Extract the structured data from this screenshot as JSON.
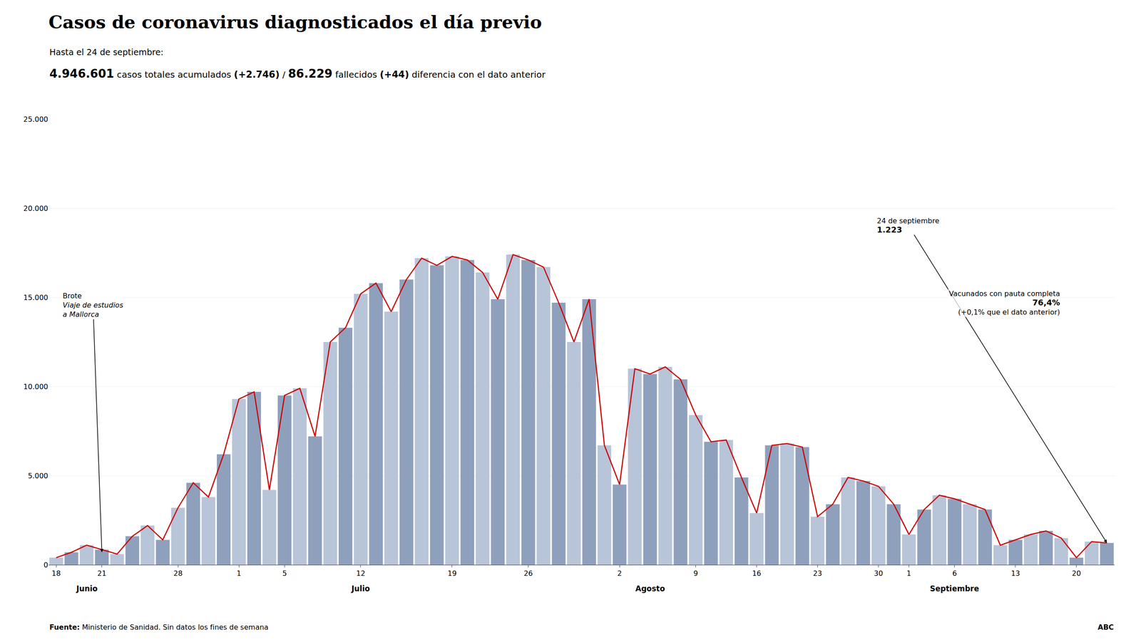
{
  "chart_data": {
    "type": "bar",
    "title": "Casos de coronavirus diagnosticados el día previo",
    "subtitle": "Hasta el 24 de septiembre:",
    "subtitle_parts": [
      "4.946.601",
      "casos totales acumulados",
      "(+2.746)",
      "/",
      "86.229",
      "fallecidos",
      "(+44)",
      "diferencia con el dato anterior"
    ],
    "source": "Fuente:",
    "source_text": "Ministerio de Sanidad. Sin datos los fines de semana",
    "source_right": "ABC",
    "categories": [
      "18",
      null,
      null,
      "21",
      null,
      null,
      null,
      null,
      "28",
      null,
      null,
      null,
      "1",
      null,
      null,
      "5",
      null,
      null,
      null,
      null,
      "12",
      null,
      null,
      null,
      null,
      null,
      "19",
      null,
      null,
      null,
      null,
      "26",
      null,
      null,
      null,
      null,
      null,
      "2",
      null,
      null,
      null,
      null,
      "9",
      null,
      null,
      null,
      "16",
      null,
      null,
      null,
      "23",
      null,
      null,
      null,
      "30",
      null,
      "1",
      null,
      null,
      "6",
      null,
      null,
      null,
      "13",
      null,
      null,
      null,
      "20",
      null,
      null
    ],
    "series": [
      {
        "type": "bar",
        "colors": [
          "#b8c4d8",
          "#8fa0bc",
          "#b8c4d8",
          "#8fa0bc",
          "#b8c4d8",
          "#8fa0bc",
          "#b8c4d8",
          "#8fa0bc",
          "#b8c4d8",
          "#8fa0bc",
          "#b8c4d8",
          "#8fa0bc",
          "#b8c4d8",
          "#8fa0bc",
          "#b8c4d8",
          "#8fa0bc",
          "#b8c4d8",
          "#8fa0bc",
          "#b8c4d8",
          "#8fa0bc",
          "#b8c4d8",
          "#8fa0bc",
          "#b8c4d8",
          "#8fa0bc",
          "#b8c4d8",
          "#8fa0bc",
          "#b8c4d8",
          "#8fa0bc",
          "#b8c4d8",
          "#8fa0bc",
          "#b8c4d8",
          "#8fa0bc",
          "#b8c4d8",
          "#8fa0bc",
          "#b8c4d8",
          "#8fa0bc",
          "#b8c4d8",
          "#8fa0bc",
          "#b8c4d8",
          "#8fa0bc",
          "#b8c4d8",
          "#8fa0bc",
          "#b8c4d8",
          "#8fa0bc",
          "#b8c4d8",
          "#8fa0bc",
          "#b8c4d8",
          "#8fa0bc",
          "#b8c4d8",
          "#8fa0bc",
          "#b8c4d8",
          "#8fa0bc",
          "#b8c4d8",
          "#8fa0bc",
          "#b8c4d8",
          "#8fa0bc",
          "#b8c4d8",
          "#8fa0bc",
          "#b8c4d8",
          "#8fa0bc",
          "#b8c4d8",
          "#8fa0bc",
          "#b8c4d8",
          "#8fa0bc",
          "#b8c4d8",
          "#8fa0bc",
          "#b8c4d8",
          "#8fa0bc",
          "#b8c4d8",
          "#8fa0bc"
        ],
        "values": [
          400,
          700,
          1100,
          850,
          600,
          1600,
          2200,
          1400,
          3200,
          4600,
          3800,
          6200,
          9300,
          9700,
          4200,
          9500,
          9900,
          7200,
          12500,
          13300,
          15200,
          15800,
          14200,
          16000,
          17200,
          16800,
          17300,
          17100,
          16400,
          14900,
          17400,
          17100,
          16700,
          14700,
          12500,
          14900,
          6700,
          4500,
          11000,
          10700,
          11100,
          10400,
          8400,
          6900,
          7000,
          4900,
          2900,
          6700,
          6800,
          6600,
          2700,
          3400,
          4900,
          4700,
          4400,
          3400,
          1700,
          3100,
          3900,
          3700,
          3400,
          3100,
          1100,
          1400,
          1700,
          1900,
          1500,
          400,
          1300,
          1223
        ]
      },
      {
        "type": "line",
        "color": "#cc0000",
        "values": [
          400,
          700,
          1100,
          850,
          600,
          1600,
          2200,
          1400,
          3200,
          4600,
          3800,
          6200,
          9300,
          9700,
          4200,
          9500,
          9900,
          7200,
          12500,
          13300,
          15200,
          15800,
          14200,
          16000,
          17200,
          16800,
          17300,
          17100,
          16400,
          14900,
          17400,
          17100,
          16700,
          14700,
          12500,
          14900,
          6700,
          4500,
          11000,
          10700,
          11100,
          10400,
          8400,
          6900,
          7000,
          4900,
          2900,
          6700,
          6800,
          6600,
          2700,
          3400,
          4900,
          4700,
          4400,
          3400,
          1700,
          3100,
          3900,
          3700,
          3400,
          3100,
          1100,
          1400,
          1700,
          1900,
          1500,
          400,
          1300,
          1223
        ]
      }
    ],
    "ylim": [
      0,
      25000
    ],
    "yticks": [
      0,
      {
        "value": 5000,
        "label": "5.000"
      },
      {
        "value": 10000,
        "label": "10.000"
      },
      {
        "value": 15000,
        "label": "15.000"
      },
      {
        "value": 20000,
        "label": "20.000"
      },
      {
        "value": 25000,
        "label": "25.000"
      }
    ],
    "grid": true,
    "month_labels": [
      {
        "text": "Junio",
        "x": 2
      },
      {
        "text": "Julio",
        "x": 20
      },
      {
        "text": "Agosto",
        "x": 39
      },
      {
        "text": "Septiembre",
        "x": 59
      }
    ],
    "annotations": [
      {
        "x": 3,
        "y": 700,
        "lines": [
          "Brote",
          "Viaje de estudios",
          "a Mallorca"
        ]
      },
      {
        "x": 69,
        "y": 1223,
        "lines": [
          "24 de septiembre",
          "1.223"
        ]
      }
    ],
    "note": [
      "Vacunados con pauta completa",
      "76,4%",
      "(+0,1% que el dato anterior)"
    ]
  }
}
